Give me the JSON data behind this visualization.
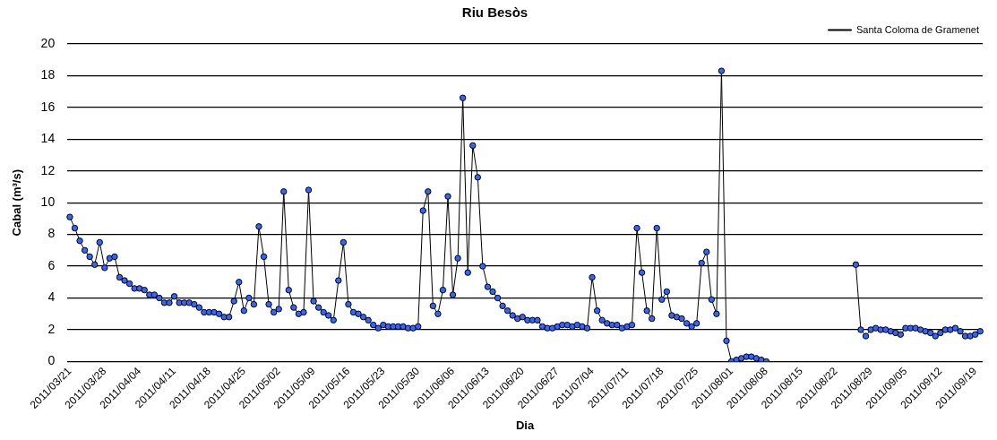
{
  "chart_data": {
    "type": "line",
    "title": "Riu Besòs",
    "xlabel": "Dia",
    "ylabel": "Cabal (m³/s)",
    "categories": [
      "2011/03/21",
      null,
      null,
      null,
      null,
      null,
      null,
      "2011/03/28",
      null,
      null,
      null,
      null,
      null,
      null,
      "2011/04/04",
      null,
      null,
      null,
      null,
      null,
      null,
      "2011/04/11",
      null,
      null,
      null,
      null,
      null,
      null,
      "2011/04/18",
      null,
      null,
      null,
      null,
      null,
      null,
      "2011/04/25",
      null,
      null,
      null,
      null,
      null,
      null,
      "2011/05/02",
      null,
      null,
      null,
      null,
      null,
      null,
      "2011/05/09",
      null,
      null,
      null,
      null,
      null,
      null,
      "2011/05/16",
      null,
      null,
      null,
      null,
      null,
      null,
      "2011/05/23",
      null,
      null,
      null,
      null,
      null,
      null,
      "2011/05/30",
      null,
      null,
      null,
      null,
      null,
      null,
      "2011/06/06",
      null,
      null,
      null,
      null,
      null,
      null,
      "2011/06/13",
      null,
      null,
      null,
      null,
      null,
      null,
      "2011/06/20",
      null,
      null,
      null,
      null,
      null,
      null,
      "2011/06/27",
      null,
      null,
      null,
      null,
      null,
      null,
      "2011/07/04",
      null,
      null,
      null,
      null,
      null,
      null,
      "2011/07/11",
      null,
      null,
      null,
      null,
      null,
      null,
      "2011/07/18",
      null,
      null,
      null,
      null,
      null,
      null,
      "2011/07/25",
      null,
      null,
      null,
      null,
      null,
      null,
      "2011/08/01",
      null,
      null,
      null,
      null,
      null,
      null,
      "2011/08/08",
      null,
      null,
      null,
      null,
      null,
      null,
      "2011/08/15",
      null,
      null,
      null,
      null,
      null,
      null,
      "2011/08/22",
      null,
      null,
      null,
      null,
      null,
      null,
      "2011/08/29",
      null,
      null,
      null,
      null,
      null,
      null,
      "2011/09/05",
      null,
      null,
      null,
      null,
      null,
      null,
      "2011/09/12",
      null,
      null,
      null,
      null,
      null,
      null,
      "2011/09/19",
      null
    ],
    "series": [
      {
        "name": "Santa Coloma de Gramenet",
        "color": "#3366ff",
        "values": [
          9.1,
          8.4,
          7.6,
          7.0,
          6.6,
          6.1,
          7.5,
          5.9,
          6.5,
          6.6,
          5.3,
          5.1,
          4.9,
          4.6,
          4.6,
          4.5,
          4.2,
          4.2,
          4.0,
          3.7,
          3.7,
          4.1,
          3.7,
          3.7,
          3.7,
          3.6,
          3.4,
          3.1,
          3.1,
          3.1,
          3.0,
          2.8,
          2.8,
          3.8,
          5.0,
          3.2,
          4.0,
          3.6,
          8.5,
          6.6,
          3.6,
          3.1,
          3.3,
          10.7,
          4.5,
          3.4,
          3.0,
          3.1,
          10.8,
          3.8,
          3.4,
          3.1,
          2.9,
          2.6,
          5.1,
          7.5,
          3.6,
          3.1,
          3.0,
          2.8,
          2.6,
          2.3,
          2.1,
          2.3,
          2.2,
          2.2,
          2.2,
          2.2,
          2.1,
          2.1,
          2.2,
          9.5,
          10.7,
          3.5,
          3.0,
          4.5,
          10.4,
          4.2,
          6.5,
          16.6,
          5.6,
          13.6,
          11.6,
          6.0,
          4.7,
          4.4,
          4.0,
          3.5,
          3.2,
          2.9,
          2.7,
          2.8,
          2.6,
          2.6,
          2.6,
          2.2,
          2.1,
          2.1,
          2.2,
          2.3,
          2.3,
          2.2,
          2.3,
          2.2,
          2.1,
          5.3,
          3.2,
          2.6,
          2.4,
          2.3,
          2.3,
          2.1,
          2.2,
          2.3,
          8.4,
          5.6,
          3.2,
          2.7,
          8.4,
          3.9,
          4.4,
          2.9,
          2.8,
          2.7,
          2.4,
          2.2,
          2.4,
          6.2,
          6.9,
          3.9,
          3.0,
          18.3,
          1.3,
          0.0,
          0.1,
          0.2,
          0.3,
          0.3,
          0.2,
          0.1,
          0.0,
          null,
          null,
          null,
          null,
          null,
          null,
          null,
          null,
          null,
          null,
          null,
          null,
          null,
          null,
          null,
          null,
          null,
          6.1,
          2.0,
          1.6,
          2.0,
          2.1,
          2.0,
          2.0,
          1.9,
          1.8,
          1.7,
          2.1,
          2.1,
          2.1,
          2.0,
          1.9,
          1.8,
          1.6,
          1.8,
          2.0,
          2.0,
          2.1,
          1.9,
          1.6,
          1.6,
          1.7,
          1.9
        ]
      }
    ],
    "ylim": [
      0,
      20
    ],
    "yticks": [
      0,
      2,
      4,
      6,
      8,
      10,
      12,
      14,
      16,
      18,
      20
    ],
    "grid": "y",
    "legend": "top right",
    "marker": "circle",
    "line_style": "solid"
  }
}
